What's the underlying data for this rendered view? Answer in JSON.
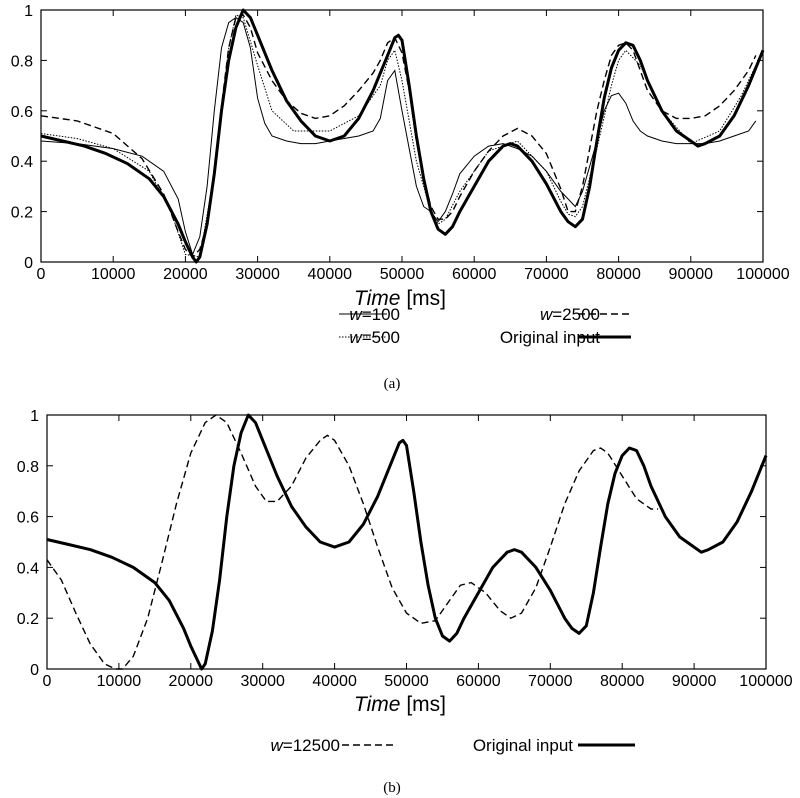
{
  "chart_data": [
    {
      "type": "line",
      "caption": "(a)",
      "xlabel_italic": "Time",
      "xlabel_unit": " [ms]",
      "xlim": [
        0,
        100000
      ],
      "ylim": [
        0,
        1
      ],
      "xticks": [
        "0",
        "10000",
        "20000",
        "30000",
        "40000",
        "50000",
        "60000",
        "70000",
        "80000",
        "90000",
        "100000"
      ],
      "yticks": [
        "0",
        "0.2",
        "0.4",
        "0.6",
        "0.8",
        "1"
      ],
      "series": [
        {
          "name": "w=100",
          "label_italic": "w",
          "label_rest": "=100",
          "style": "thin-solid",
          "x": [
            0,
            5000,
            10000,
            14000,
            17000,
            19000,
            20000,
            21000,
            22000,
            23000,
            24000,
            25000,
            26000,
            27000,
            28000,
            29000,
            30000,
            31000,
            32000,
            34000,
            36000,
            38000,
            40000,
            42000,
            44000,
            46000,
            47000,
            48000,
            49000,
            50000,
            51000,
            52000,
            53000,
            54000,
            55000,
            56000,
            57000,
            58000,
            60000,
            62000,
            64000,
            66000,
            68000,
            70000,
            71000,
            72000,
            73000,
            74000,
            75000,
            76000,
            77000,
            78000,
            79000,
            80000,
            81000,
            82000,
            83000,
            84000,
            86000,
            88000,
            90000,
            92000,
            94000,
            96000,
            98000,
            99000
          ],
          "y": [
            0.48,
            0.47,
            0.45,
            0.42,
            0.36,
            0.25,
            0.12,
            0.03,
            0.1,
            0.3,
            0.6,
            0.85,
            0.95,
            0.97,
            0.95,
            0.85,
            0.65,
            0.55,
            0.5,
            0.48,
            0.47,
            0.47,
            0.48,
            0.49,
            0.5,
            0.52,
            0.57,
            0.72,
            0.76,
            0.6,
            0.45,
            0.3,
            0.22,
            0.2,
            0.16,
            0.2,
            0.27,
            0.35,
            0.42,
            0.46,
            0.47,
            0.45,
            0.42,
            0.36,
            0.32,
            0.28,
            0.25,
            0.22,
            0.28,
            0.38,
            0.48,
            0.6,
            0.66,
            0.67,
            0.63,
            0.56,
            0.52,
            0.5,
            0.48,
            0.47,
            0.47,
            0.47,
            0.48,
            0.5,
            0.52,
            0.56
          ]
        },
        {
          "name": "w=500",
          "label_italic": "w",
          "label_rest": "=500",
          "style": "dotted",
          "x": [
            0,
            5000,
            10000,
            15000,
            18000,
            20000,
            22000,
            24000,
            26000,
            27000,
            28000,
            30000,
            32000,
            35000,
            40000,
            44000,
            47000,
            48000,
            49000,
            50000,
            52000,
            54000,
            55000,
            56000,
            58000,
            62000,
            66000,
            70000,
            72000,
            73000,
            74000,
            75000,
            77000,
            79000,
            80000,
            81000,
            83000,
            86000,
            90000,
            94000,
            97000,
            99000
          ],
          "y": [
            0.51,
            0.49,
            0.45,
            0.36,
            0.2,
            0.03,
            0.02,
            0.35,
            0.85,
            0.98,
            0.97,
            0.78,
            0.6,
            0.52,
            0.52,
            0.58,
            0.7,
            0.8,
            0.84,
            0.72,
            0.4,
            0.2,
            0.15,
            0.17,
            0.28,
            0.44,
            0.48,
            0.36,
            0.24,
            0.19,
            0.18,
            0.22,
            0.45,
            0.7,
            0.8,
            0.84,
            0.78,
            0.6,
            0.47,
            0.52,
            0.66,
            0.78
          ]
        },
        {
          "name": "w=2500",
          "label_italic": "w",
          "label_rest": "=2500",
          "style": "dashed",
          "x": [
            0,
            5000,
            10000,
            14000,
            17000,
            19000,
            20000,
            21000,
            22000,
            23000,
            24000,
            25000,
            26000,
            27000,
            28000,
            29000,
            30000,
            32000,
            34000,
            36000,
            38000,
            40000,
            42000,
            44000,
            46000,
            47000,
            48000,
            49000,
            50000,
            51000,
            52000,
            53000,
            54000,
            55000,
            56000,
            57000,
            58000,
            60000,
            62000,
            64000,
            66000,
            68000,
            70000,
            71000,
            72000,
            73000,
            74000,
            75000,
            76000,
            77000,
            78000,
            79000,
            80000,
            81000,
            82000,
            83000,
            84000,
            86000,
            88000,
            90000,
            92000,
            94000,
            96000,
            98000,
            99000
          ],
          "y": [
            0.58,
            0.56,
            0.51,
            0.41,
            0.27,
            0.12,
            0.05,
            0.02,
            0.05,
            0.15,
            0.35,
            0.62,
            0.85,
            0.97,
            0.98,
            0.93,
            0.83,
            0.72,
            0.64,
            0.59,
            0.57,
            0.58,
            0.62,
            0.68,
            0.75,
            0.8,
            0.87,
            0.89,
            0.83,
            0.68,
            0.48,
            0.33,
            0.22,
            0.17,
            0.17,
            0.2,
            0.26,
            0.36,
            0.44,
            0.5,
            0.53,
            0.5,
            0.43,
            0.36,
            0.29,
            0.2,
            0.2,
            0.3,
            0.45,
            0.6,
            0.72,
            0.82,
            0.86,
            0.87,
            0.84,
            0.76,
            0.68,
            0.6,
            0.57,
            0.57,
            0.58,
            0.62,
            0.68,
            0.76,
            0.82
          ]
        },
        {
          "name": "Original input",
          "label_italic": "",
          "label_rest": "Original input",
          "style": "thick-solid",
          "x": [
            0,
            3000,
            6000,
            9000,
            12000,
            15000,
            17000,
            19000,
            20000,
            21000,
            21500,
            22000,
            23000,
            24000,
            25000,
            26000,
            27000,
            28000,
            29000,
            30000,
            32000,
            34000,
            36000,
            38000,
            40000,
            42000,
            44000,
            46000,
            48000,
            49000,
            49500,
            50000,
            51000,
            52000,
            53000,
            54000,
            55000,
            56000,
            57000,
            58000,
            60000,
            62000,
            64000,
            65000,
            66000,
            68000,
            70000,
            72000,
            73000,
            74000,
            75000,
            76000,
            77000,
            78000,
            79000,
            80000,
            81000,
            82000,
            83000,
            84000,
            86000,
            88000,
            90000,
            91000,
            92000,
            94000,
            96000,
            98000,
            100000
          ],
          "y": [
            0.5,
            0.48,
            0.46,
            0.43,
            0.39,
            0.33,
            0.26,
            0.15,
            0.08,
            0.02,
            0.0,
            0.02,
            0.15,
            0.35,
            0.6,
            0.8,
            0.93,
            1.0,
            0.97,
            0.9,
            0.76,
            0.64,
            0.56,
            0.5,
            0.48,
            0.5,
            0.57,
            0.68,
            0.82,
            0.89,
            0.9,
            0.88,
            0.7,
            0.5,
            0.33,
            0.2,
            0.13,
            0.11,
            0.14,
            0.2,
            0.3,
            0.4,
            0.46,
            0.47,
            0.46,
            0.4,
            0.31,
            0.2,
            0.16,
            0.14,
            0.17,
            0.3,
            0.48,
            0.65,
            0.77,
            0.84,
            0.87,
            0.86,
            0.8,
            0.72,
            0.6,
            0.52,
            0.48,
            0.46,
            0.47,
            0.5,
            0.58,
            0.7,
            0.84
          ]
        }
      ]
    },
    {
      "type": "line",
      "caption": "(b)",
      "xlabel_italic": "Time",
      "xlabel_unit": " [ms]",
      "xlim": [
        0,
        100000
      ],
      "ylim": [
        0,
        1
      ],
      "xticks": [
        "0",
        "10000",
        "20000",
        "30000",
        "40000",
        "50000",
        "60000",
        "70000",
        "80000",
        "90000",
        "100000"
      ],
      "yticks": [
        "0",
        "0.2",
        "0.4",
        "0.6",
        "0.8",
        "1"
      ],
      "series": [
        {
          "name": "w=12500",
          "label_italic": "w",
          "label_rest": "=12500",
          "style": "dashed",
          "x": [
            0,
            2000,
            4000,
            6000,
            8000,
            9500,
            10500,
            12000,
            14000,
            16000,
            18000,
            20000,
            22000,
            23500,
            25000,
            27000,
            29000,
            30500,
            32000,
            34000,
            36000,
            38000,
            39000,
            40000,
            42000,
            44000,
            46000,
            48000,
            50000,
            52000,
            54000,
            56000,
            57500,
            59000,
            61000,
            63000,
            64500,
            66000,
            68000,
            70000,
            72000,
            74000,
            76000,
            77000,
            78000,
            80000,
            82000,
            84000,
            85000
          ],
          "y": [
            0.43,
            0.35,
            0.22,
            0.1,
            0.02,
            0.0,
            0.0,
            0.05,
            0.2,
            0.42,
            0.65,
            0.85,
            0.97,
            1.0,
            0.97,
            0.85,
            0.72,
            0.66,
            0.66,
            0.72,
            0.83,
            0.9,
            0.92,
            0.9,
            0.8,
            0.65,
            0.48,
            0.32,
            0.22,
            0.18,
            0.19,
            0.27,
            0.33,
            0.34,
            0.3,
            0.23,
            0.2,
            0.22,
            0.32,
            0.48,
            0.65,
            0.78,
            0.86,
            0.87,
            0.85,
            0.76,
            0.67,
            0.63,
            0.63
          ]
        },
        {
          "name": "Original input",
          "label_italic": "",
          "label_rest": "Original input",
          "style": "thick-solid",
          "x": [
            0,
            3000,
            6000,
            9000,
            12000,
            15000,
            17000,
            19000,
            20000,
            21000,
            21500,
            22000,
            23000,
            24000,
            25000,
            26000,
            27000,
            28000,
            29000,
            30000,
            32000,
            34000,
            36000,
            38000,
            40000,
            42000,
            44000,
            46000,
            48000,
            49000,
            49500,
            50000,
            51000,
            52000,
            53000,
            54000,
            55000,
            56000,
            57000,
            58000,
            60000,
            62000,
            64000,
            65000,
            66000,
            68000,
            70000,
            72000,
            73000,
            74000,
            75000,
            76000,
            77000,
            78000,
            79000,
            80000,
            81000,
            82000,
            83000,
            84000,
            86000,
            88000,
            90000,
            91000,
            92000,
            94000,
            96000,
            98000,
            100000
          ],
          "y": [
            0.51,
            0.49,
            0.47,
            0.44,
            0.4,
            0.34,
            0.27,
            0.16,
            0.09,
            0.03,
            0.0,
            0.02,
            0.15,
            0.35,
            0.6,
            0.8,
            0.93,
            1.0,
            0.97,
            0.9,
            0.76,
            0.64,
            0.56,
            0.5,
            0.48,
            0.5,
            0.57,
            0.68,
            0.82,
            0.89,
            0.9,
            0.88,
            0.7,
            0.5,
            0.33,
            0.2,
            0.13,
            0.11,
            0.14,
            0.2,
            0.3,
            0.4,
            0.46,
            0.47,
            0.46,
            0.4,
            0.31,
            0.2,
            0.16,
            0.14,
            0.17,
            0.3,
            0.48,
            0.65,
            0.77,
            0.84,
            0.87,
            0.86,
            0.8,
            0.72,
            0.6,
            0.52,
            0.48,
            0.46,
            0.47,
            0.5,
            0.58,
            0.7,
            0.84
          ]
        }
      ]
    }
  ]
}
